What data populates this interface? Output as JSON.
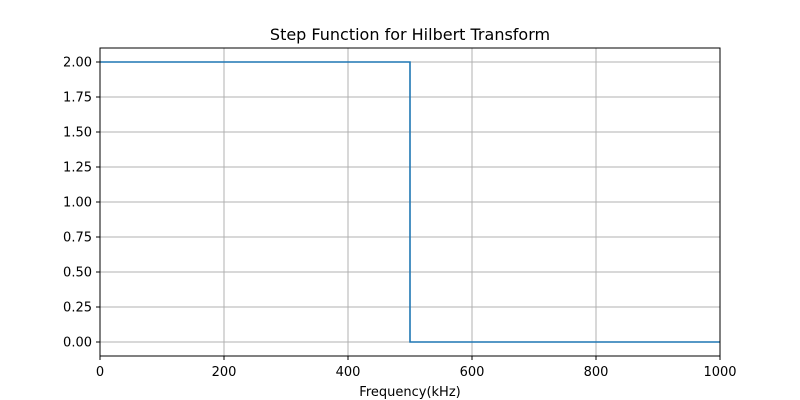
{
  "chart_data": {
    "type": "line",
    "title": "Step Function for Hilbert Transform",
    "xlabel": "Frequency(kHz)",
    "ylabel": "",
    "xlim": [
      0,
      1000
    ],
    "ylim": [
      -0.1,
      2.1
    ],
    "xticks": [
      0,
      200,
      400,
      600,
      800,
      1000
    ],
    "xtick_labels": [
      "0",
      "200",
      "400",
      "600",
      "800",
      "1000"
    ],
    "yticks": [
      0.0,
      0.25,
      0.5,
      0.75,
      1.0,
      1.25,
      1.5,
      1.75,
      2.0
    ],
    "ytick_labels": [
      "0.00",
      "0.25",
      "0.50",
      "0.75",
      "1.00",
      "1.25",
      "1.50",
      "1.75",
      "2.00"
    ],
    "grid": true,
    "series": [
      {
        "color": "#1f77b4",
        "x": [
          0,
          500,
          500,
          1000
        ],
        "y": [
          2.0,
          2.0,
          0.0,
          0.0
        ]
      }
    ]
  }
}
